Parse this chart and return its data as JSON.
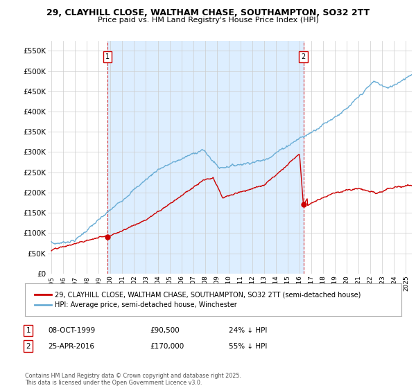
{
  "title": "29, CLAYHILL CLOSE, WALTHAM CHASE, SOUTHAMPTON, SO32 2TT",
  "subtitle": "Price paid vs. HM Land Registry's House Price Index (HPI)",
  "ylabel_ticks": [
    "£0",
    "£50K",
    "£100K",
    "£150K",
    "£200K",
    "£250K",
    "£300K",
    "£350K",
    "£400K",
    "£450K",
    "£500K",
    "£550K"
  ],
  "ytick_values": [
    0,
    50000,
    100000,
    150000,
    200000,
    250000,
    300000,
    350000,
    400000,
    450000,
    500000,
    550000
  ],
  "ylim": [
    0,
    575000
  ],
  "xlim_start": 1994.7,
  "xlim_end": 2025.5,
  "marker1_x": 1999.77,
  "marker2_x": 2016.32,
  "marker1_y": 90500,
  "marker2_y": 170000,
  "marker1_label": "1",
  "marker2_label": "2",
  "marker1_date": "08-OCT-1999",
  "marker1_price": "£90,500",
  "marker1_note": "24% ↓ HPI",
  "marker2_date": "25-APR-2016",
  "marker2_price": "£170,000",
  "marker2_note": "55% ↓ HPI",
  "legend_line1": "29, CLAYHILL CLOSE, WALTHAM CHASE, SOUTHAMPTON, SO32 2TT (semi-detached house)",
  "legend_line2": "HPI: Average price, semi-detached house, Winchester",
  "footnote": "Contains HM Land Registry data © Crown copyright and database right 2025.\nThis data is licensed under the Open Government Licence v3.0.",
  "red_color": "#cc0000",
  "blue_color": "#6baed6",
  "fill_color": "#ddeeff",
  "background_color": "#ffffff",
  "grid_color": "#cccccc"
}
